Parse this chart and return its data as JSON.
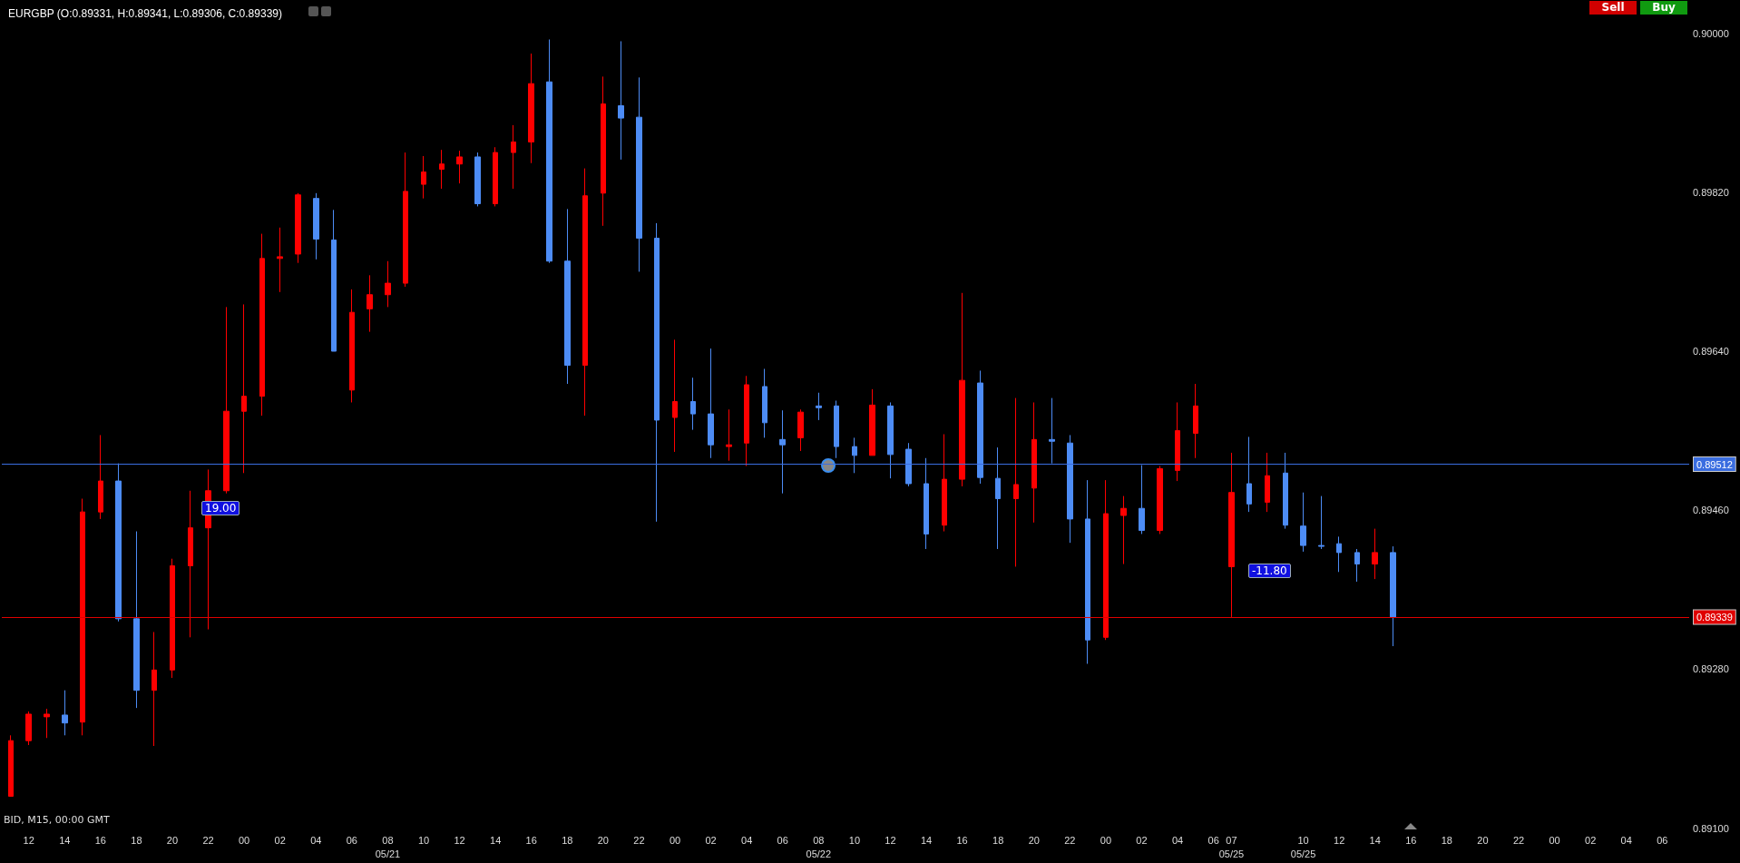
{
  "chart_data": {
    "type": "candlestick",
    "title": "EURGBP (O:0.89331, H:0.89341, L:0.89306, C:0.89339)",
    "categories": [
      null,
      "12",
      null,
      "14",
      null,
      "16",
      null,
      "18",
      null,
      "20",
      null,
      "22",
      null,
      "00",
      null,
      "02",
      null,
      "04",
      null,
      "06",
      null,
      "08\n05/21",
      null,
      "10",
      null,
      "12",
      null,
      "14",
      null,
      "16",
      null,
      "18",
      null,
      "20",
      null,
      "22",
      null,
      "00",
      null,
      "02",
      null,
      "04",
      null,
      "06",
      null,
      "08\n05/22",
      null,
      "10",
      null,
      "12",
      null,
      "14",
      null,
      "16",
      null,
      "18",
      null,
      "20",
      null,
      "22",
      null,
      "00",
      null,
      "02",
      null,
      "04",
      null,
      "06",
      "07\n05/25",
      null,
      null,
      null,
      "10\n05/25",
      null,
      "12",
      null,
      "14",
      null,
      "16",
      null,
      "18",
      null,
      "20",
      null,
      "22",
      null,
      "00",
      null,
      "02",
      null,
      "04",
      null,
      "06",
      null
    ],
    "ohlc": [
      [
        0.89136,
        0.89205,
        0.89136,
        0.89199
      ],
      [
        0.89199,
        0.89232,
        0.89194,
        0.89229
      ],
      [
        0.89226,
        0.89235,
        0.89202,
        0.89229
      ],
      [
        0.89228,
        0.89256,
        0.89205,
        0.89219
      ],
      [
        0.8922,
        0.89473,
        0.89205,
        0.89458
      ],
      [
        0.89458,
        0.89545,
        0.8945,
        0.89493
      ],
      [
        0.89493,
        0.89513,
        0.89334,
        0.89337
      ],
      [
        0.89337,
        0.89436,
        0.89236,
        0.89256
      ],
      [
        0.89256,
        0.89322,
        0.89193,
        0.89279
      ],
      [
        0.89279,
        0.89405,
        0.8927,
        0.89397
      ],
      [
        0.89397,
        0.89482,
        0.89316,
        0.8944
      ],
      [
        0.8944,
        0.89506,
        0.89325,
        0.89482
      ],
      [
        0.89482,
        0.8969,
        0.89479,
        0.89572
      ],
      [
        0.89572,
        0.89693,
        0.89502,
        0.89589
      ],
      [
        0.89589,
        0.89773,
        0.89567,
        0.89745
      ],
      [
        0.89745,
        0.8978,
        0.89707,
        0.89747
      ],
      [
        0.8975,
        0.89819,
        0.8974,
        0.89817
      ],
      [
        0.89813,
        0.89819,
        0.89744,
        0.89767
      ],
      [
        0.89766,
        0.898,
        0.8964,
        0.8964
      ],
      [
        0.89596,
        0.8971,
        0.89582,
        0.89684
      ],
      [
        0.89688,
        0.89726,
        0.89662,
        0.89704
      ],
      [
        0.89704,
        0.89742,
        0.8969,
        0.89717
      ],
      [
        0.89717,
        0.89865,
        0.89713,
        0.89821
      ],
      [
        0.89829,
        0.89861,
        0.89813,
        0.89843
      ],
      [
        0.89846,
        0.89868,
        0.89824,
        0.89852
      ],
      [
        0.89852,
        0.89867,
        0.8983,
        0.8986
      ],
      [
        0.8986,
        0.89865,
        0.89804,
        0.89807
      ],
      [
        0.89807,
        0.89871,
        0.89804,
        0.89865
      ],
      [
        0.89865,
        0.89896,
        0.89824,
        0.89877
      ],
      [
        0.89877,
        0.89977,
        0.89853,
        0.89943
      ],
      [
        0.89945,
        0.89993,
        0.8974,
        0.89742
      ],
      [
        0.89742,
        0.89801,
        0.89603,
        0.89624
      ],
      [
        0.89624,
        0.89847,
        0.89567,
        0.89816
      ],
      [
        0.89819,
        0.89951,
        0.89782,
        0.8992
      ],
      [
        0.89918,
        0.89991,
        0.89857,
        0.89904
      ],
      [
        0.89905,
        0.8995,
        0.8973,
        0.89768
      ],
      [
        0.89768,
        0.89785,
        0.89447,
        0.89562
      ],
      [
        0.89565,
        0.89653,
        0.89526,
        0.89583
      ],
      [
        0.89583,
        0.8961,
        0.89551,
        0.89569
      ],
      [
        0.89569,
        0.89643,
        0.89519,
        0.89534
      ],
      [
        0.89532,
        0.89574,
        0.89516,
        0.89534
      ],
      [
        0.89536,
        0.89612,
        0.8951,
        0.89602
      ],
      [
        0.896,
        0.8962,
        0.89542,
        0.89559
      ],
      [
        0.8954,
        0.89573,
        0.89479,
        0.89534
      ],
      [
        0.89542,
        0.89574,
        0.89527,
        0.89571
      ],
      [
        0.89578,
        0.89593,
        0.89562,
        0.89576
      ],
      [
        0.89578,
        0.89584,
        0.89519,
        0.89532
      ],
      [
        0.89532,
        0.89542,
        0.89502,
        0.89522
      ],
      [
        0.89522,
        0.89597,
        0.89522,
        0.89579
      ],
      [
        0.89578,
        0.89582,
        0.89496,
        0.89523
      ],
      [
        0.89529,
        0.89536,
        0.89487,
        0.8949
      ],
      [
        0.8949,
        0.89519,
        0.89416,
        0.89433
      ],
      [
        0.89443,
        0.89546,
        0.89436,
        0.89495
      ],
      [
        0.89495,
        0.89706,
        0.89487,
        0.89607
      ],
      [
        0.89604,
        0.89618,
        0.8949,
        0.89497
      ],
      [
        0.89496,
        0.89531,
        0.89416,
        0.89473
      ],
      [
        0.89473,
        0.89587,
        0.89396,
        0.89489
      ],
      [
        0.89485,
        0.89582,
        0.89446,
        0.8954
      ],
      [
        0.8954,
        0.89587,
        0.89513,
        0.89538
      ],
      [
        0.89536,
        0.89545,
        0.89423,
        0.8945
      ],
      [
        0.8945,
        0.89494,
        0.89286,
        0.89313
      ],
      [
        0.89316,
        0.89494,
        0.89313,
        0.89456
      ],
      [
        0.89454,
        0.89476,
        0.89399,
        0.89462
      ],
      [
        0.89462,
        0.89511,
        0.89433,
        0.89437
      ],
      [
        0.89437,
        0.8951,
        0.89433,
        0.89507
      ],
      [
        0.89505,
        0.89582,
        0.89493,
        0.8955
      ],
      [
        0.89547,
        0.89603,
        0.89519,
        0.89578
      ],
      null,
      [
        0.89396,
        0.89525,
        0.89339,
        0.8948
      ],
      [
        0.8949,
        0.89543,
        0.89458,
        0.89467
      ],
      [
        0.89469,
        0.89525,
        0.89458,
        0.89499
      ],
      [
        0.89502,
        0.89525,
        0.89439,
        0.89443
      ],
      [
        0.89442,
        0.8948,
        0.89413,
        0.8942
      ],
      [
        0.8942,
        0.89476,
        0.89416,
        0.89419
      ],
      [
        0.89422,
        0.8943,
        0.8939,
        0.89412
      ],
      [
        0.89412,
        0.89416,
        0.89379,
        0.89399
      ],
      [
        0.89399,
        0.89439,
        0.89382,
        0.89412
      ],
      [
        0.89412,
        0.89419,
        0.89306,
        0.89339
      ],
      null,
      null,
      null,
      null,
      null,
      null,
      null,
      null,
      null,
      null,
      null,
      null,
      null,
      null,
      null,
      null
    ],
    "colors": [
      "#ff0000",
      "#ff0000",
      "#ff0000",
      "#4d8cf5",
      "#ff0000",
      "#ff0000",
      "#4d8cf5",
      "#4d8cf5",
      "#ff0000",
      "#ff0000",
      "#ff0000",
      "#ff0000",
      "#ff0000",
      "#ff0000",
      "#ff0000",
      "#ff0000",
      "#ff0000",
      "#4d8cf5",
      "#4d8cf5",
      "#ff0000",
      "#ff0000",
      "#ff0000",
      "#ff0000",
      "#ff0000",
      "#ff0000",
      "#ff0000",
      "#4d8cf5",
      "#ff0000",
      "#ff0000",
      "#ff0000",
      "#4d8cf5",
      "#4d8cf5",
      "#ff0000",
      "#ff0000",
      "#4d8cf5",
      "#4d8cf5",
      "#4d8cf5",
      "#ff0000",
      "#4d8cf5",
      "#4d8cf5",
      "#ff0000",
      "#ff0000",
      "#4d8cf5",
      "#4d8cf5",
      "#ff0000",
      "#4d8cf5",
      "#4d8cf5",
      "#4d8cf5",
      "#ff0000",
      "#4d8cf5",
      "#4d8cf5",
      "#4d8cf5",
      "#ff0000",
      "#ff0000",
      "#4d8cf5",
      "#4d8cf5",
      "#ff0000",
      "#ff0000",
      "#4d8cf5",
      "#4d8cf5",
      "#4d8cf5",
      "#ff0000",
      "#ff0000",
      "#4d8cf5",
      "#ff0000",
      "#ff0000",
      "#ff0000",
      null,
      "#ff0000",
      "#4d8cf5",
      "#ff0000",
      "#4d8cf5",
      "#4d8cf5",
      "#4d8cf5",
      "#4d8cf5",
      "#4d8cf5",
      "#ff0000",
      "#4d8cf5",
      null,
      null,
      null,
      null,
      null,
      null,
      null,
      null,
      null,
      null,
      null,
      null,
      null,
      null,
      null,
      null
    ],
    "ylim": [
      0.891,
      0.9
    ],
    "yticks": [
      {
        "value": 0.891,
        "label": "0.89100"
      },
      {
        "value": 0.8928,
        "label": "0.89280"
      },
      {
        "value": 0.8946,
        "label": "0.89460"
      },
      {
        "value": 0.8964,
        "label": "0.89640"
      },
      {
        "value": 0.8982,
        "label": "0.89820"
      },
      {
        "value": 0.9,
        "label": "0.90000"
      }
    ],
    "ref_lines": [
      {
        "axis": "y",
        "value": 0.89512,
        "label": "0.89512",
        "color": "#3a6de0"
      },
      {
        "axis": "y",
        "value": 0.89339,
        "label": "0.89339",
        "color": "#e00000"
      }
    ],
    "annotations": [
      "BID, M15, 00:00 GMT",
      "19.00",
      "-11.80",
      "Sell",
      "Buy"
    ],
    "grid": false
  }
}
